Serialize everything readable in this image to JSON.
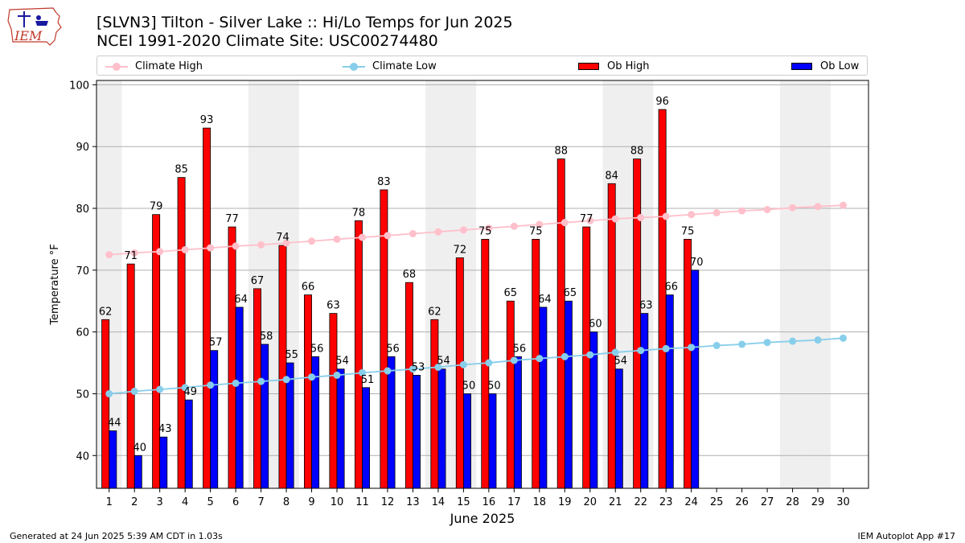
{
  "header": {
    "title_line1": "[SLVN3] Tilton - Silver Lake :: Hi/Lo Temps for Jun 2025",
    "title_line2": "NCEI 1991-2020 Climate Site: USC00274480",
    "logo_text": "IEM"
  },
  "legend": {
    "items": [
      {
        "label": "Climate High",
        "color": "#ffc0cb",
        "kind": "line"
      },
      {
        "label": "Climate Low",
        "color": "#87ceeb",
        "kind": "line"
      },
      {
        "label": "Ob High",
        "color": "#ff0000",
        "kind": "bar"
      },
      {
        "label": "Ob Low",
        "color": "#0000ff",
        "kind": "bar"
      }
    ]
  },
  "footer": {
    "left": "Generated at 24 Jun 2025 5:39 AM CDT in 1.03s",
    "right": "IEM Autoplot App #17"
  },
  "chart_data": {
    "type": "bar",
    "xlabel": "June 2025",
    "ylabel": "Temperature °F",
    "ylim": [
      34.7,
      100.7
    ],
    "yticks": [
      40,
      50,
      60,
      70,
      80,
      90,
      100
    ],
    "grid": "horizontal",
    "legend_position": "top",
    "categories": [
      "1",
      "2",
      "3",
      "4",
      "5",
      "6",
      "7",
      "8",
      "9",
      "10",
      "11",
      "12",
      "13",
      "14",
      "15",
      "16",
      "17",
      "18",
      "19",
      "20",
      "21",
      "22",
      "23",
      "24",
      "25",
      "26",
      "27",
      "28",
      "29",
      "30"
    ],
    "weekend_days": [
      1,
      7,
      8,
      14,
      15,
      21,
      22,
      28,
      29
    ],
    "series": [
      {
        "name": "Ob High",
        "kind": "bar",
        "color": "#ff0000",
        "values": [
          62,
          71,
          79,
          85,
          93,
          77,
          67,
          74,
          66,
          63,
          78,
          83,
          68,
          62,
          72,
          75,
          65,
          75,
          88,
          77,
          84,
          88,
          96,
          75,
          null,
          null,
          null,
          null,
          null,
          null
        ]
      },
      {
        "name": "Ob Low",
        "kind": "bar",
        "color": "#0000ff",
        "values": [
          44,
          40,
          43,
          49,
          57,
          64,
          58,
          55,
          56,
          54,
          51,
          56,
          53,
          54,
          50,
          50,
          56,
          64,
          65,
          60,
          54,
          63,
          66,
          70,
          null,
          null,
          null,
          null,
          null,
          null
        ]
      },
      {
        "name": "Climate High",
        "kind": "line",
        "color": "#ffc0cb",
        "values": [
          72.5,
          72.8,
          73.0,
          73.3,
          73.6,
          73.9,
          74.1,
          74.4,
          74.7,
          75.0,
          75.3,
          75.6,
          75.9,
          76.2,
          76.5,
          76.8,
          77.1,
          77.4,
          77.7,
          78.0,
          78.3,
          78.5,
          78.7,
          79.0,
          79.3,
          79.6,
          79.8,
          80.1,
          80.3,
          80.5
        ]
      },
      {
        "name": "Climate Low",
        "kind": "line",
        "color": "#87ceeb",
        "values": [
          50.0,
          50.4,
          50.7,
          51.0,
          51.4,
          51.7,
          52.0,
          52.3,
          52.7,
          53.0,
          53.4,
          53.7,
          54.0,
          54.3,
          54.7,
          55.0,
          55.4,
          55.7,
          56.0,
          56.3,
          56.7,
          57.0,
          57.3,
          57.5,
          57.8,
          58.0,
          58.3,
          58.5,
          58.7,
          59.0
        ]
      }
    ]
  }
}
